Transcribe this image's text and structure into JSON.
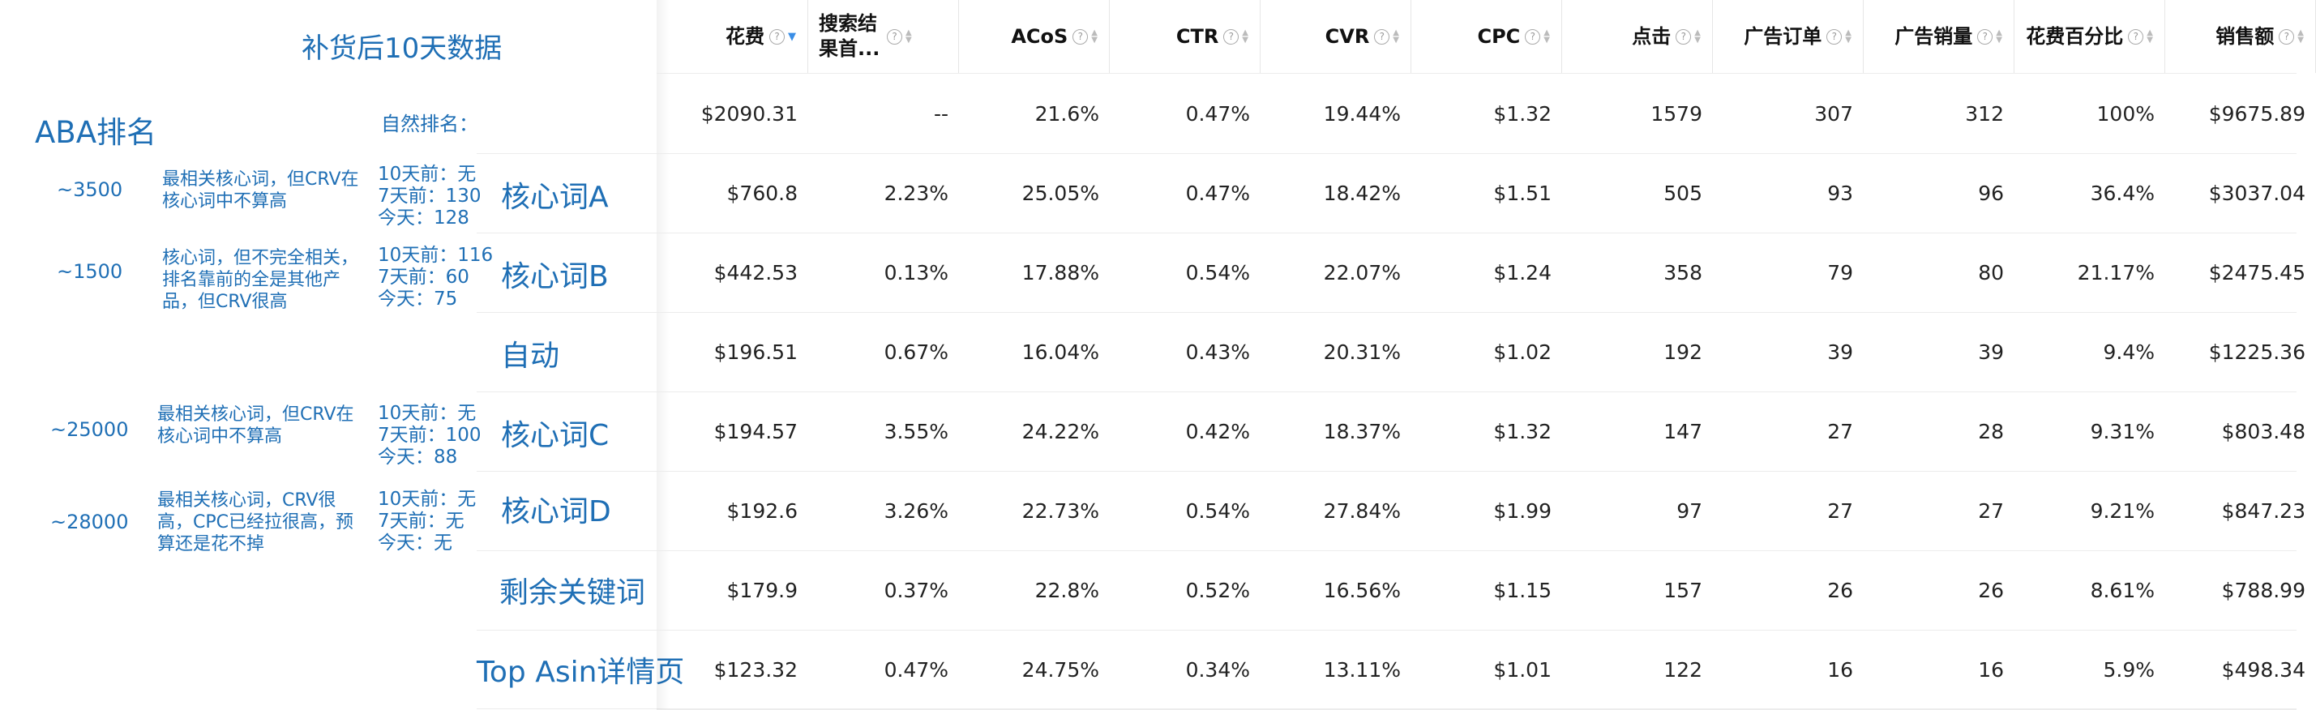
{
  "annotations": {
    "title": "补货后10天数据",
    "aba_title": "ABA排名",
    "natural_rank_label": "自然排名：",
    "rows": [
      {
        "rank": "~3500",
        "note": "最相关核心词，但CRV在核心词中不算高",
        "history": [
          "10天前：无",
          "7天前：130",
          "今天：128"
        ]
      },
      {
        "rank": "~1500",
        "note": "核心词，但不完全相关，排名靠前的全是其他产品，但CRV很高",
        "history": [
          "10天前：116",
          "7天前：60",
          "今天：75"
        ]
      },
      {
        "rank": "~25000",
        "note": "最相关核心词，但CRV在核心词中不算高",
        "history": [
          "10天前：无",
          "7天前：100",
          "今天：88"
        ]
      },
      {
        "rank": "~28000",
        "note": "最相关核心词，CRV很高，CPC已经拉很高，预算还是花不掉",
        "history": [
          "10天前：无",
          "7天前：无",
          "今天：无"
        ]
      }
    ],
    "row_labels": [
      "核心词A",
      "核心词B",
      "自动",
      "核心词C",
      "核心词D",
      "剩余关键词",
      "Top Asin详情页"
    ]
  },
  "table": {
    "columns": [
      {
        "label": "花费",
        "help": true,
        "sort": "desc"
      },
      {
        "label": "搜索结果首...",
        "help": true,
        "sort": "none"
      },
      {
        "label": "ACoS",
        "help": true,
        "sort": "none"
      },
      {
        "label": "CTR",
        "help": true,
        "sort": "none"
      },
      {
        "label": "CVR",
        "help": true,
        "sort": "none"
      },
      {
        "label": "CPC",
        "help": true,
        "sort": "none"
      },
      {
        "label": "点击",
        "help": true,
        "sort": "none"
      },
      {
        "label": "广告订单",
        "help": true,
        "sort": "none"
      },
      {
        "label": "广告销量",
        "help": true,
        "sort": "none"
      },
      {
        "label": "花费百分比",
        "help": true,
        "sort": "none"
      },
      {
        "label": "销售额",
        "help": true,
        "sort": "none"
      }
    ],
    "rows": [
      [
        "$2090.31",
        "--",
        "21.6%",
        "0.47%",
        "19.44%",
        "$1.32",
        "1579",
        "307",
        "312",
        "100%",
        "$9675.89"
      ],
      [
        "$760.8",
        "2.23%",
        "25.05%",
        "0.47%",
        "18.42%",
        "$1.51",
        "505",
        "93",
        "96",
        "36.4%",
        "$3037.04"
      ],
      [
        "$442.53",
        "0.13%",
        "17.88%",
        "0.54%",
        "22.07%",
        "$1.24",
        "358",
        "79",
        "80",
        "21.17%",
        "$2475.45"
      ],
      [
        "$196.51",
        "0.67%",
        "16.04%",
        "0.43%",
        "20.31%",
        "$1.02",
        "192",
        "39",
        "39",
        "9.4%",
        "$1225.36"
      ],
      [
        "$194.57",
        "3.55%",
        "24.22%",
        "0.42%",
        "18.37%",
        "$1.32",
        "147",
        "27",
        "28",
        "9.31%",
        "$803.48"
      ],
      [
        "$192.6",
        "3.26%",
        "22.73%",
        "0.54%",
        "27.84%",
        "$1.99",
        "97",
        "27",
        "27",
        "9.21%",
        "$847.23"
      ],
      [
        "$179.9",
        "0.37%",
        "22.8%",
        "0.52%",
        "16.56%",
        "$1.15",
        "157",
        "26",
        "26",
        "8.61%",
        "$788.99"
      ],
      [
        "$123.32",
        "0.47%",
        "24.75%",
        "0.34%",
        "13.11%",
        "$1.01",
        "122",
        "16",
        "16",
        "5.9%",
        "$498.34"
      ]
    ]
  },
  "colors": {
    "annotation_blue": "#1f6fb5",
    "sort_active": "#3a8ee6"
  }
}
